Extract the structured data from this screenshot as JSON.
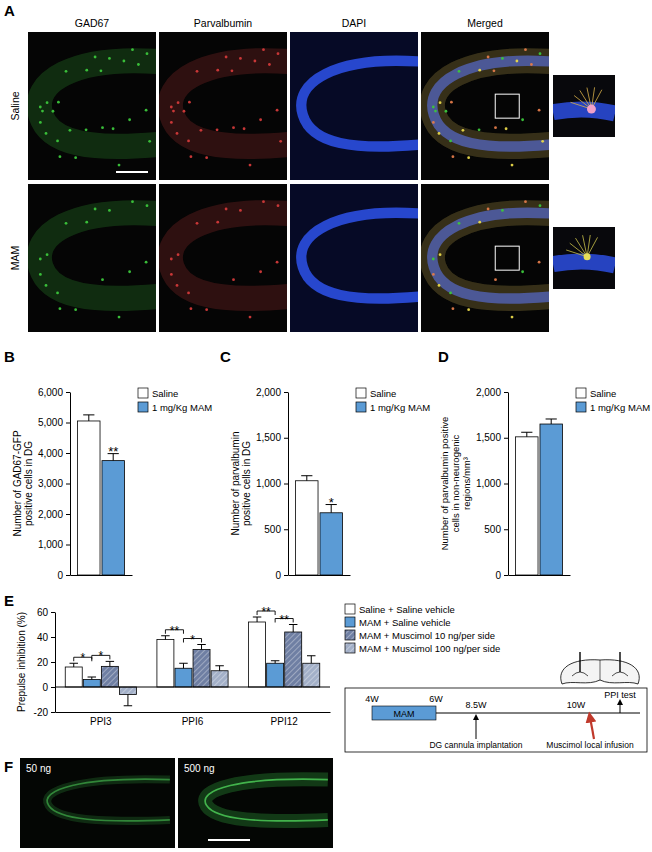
{
  "figure": {
    "panel_labels": [
      "A",
      "B",
      "C",
      "D",
      "E",
      "F"
    ],
    "panel_a": {
      "columns": [
        "GAD67",
        "Parvalbumin",
        "DAPI",
        "Merged"
      ],
      "rows": [
        "Saline",
        "MAM"
      ]
    },
    "timeline": {
      "start": "4W",
      "treatment": "MAM",
      "treatment_end": "6W",
      "surgery_time": "8.5W",
      "surgery": "DG cannula implantation",
      "infusion_time": "10W",
      "infusion": "Muscimol local infusion",
      "test": "PPI test"
    },
    "panel_f": {
      "images": [
        "50 ng",
        "500 ng"
      ]
    }
  },
  "chart_data": [
    {
      "type": "bar",
      "y_label": "Number of GAD67-GFP positive cells in DG",
      "categories": [
        null
      ],
      "series": [
        {
          "name": "Saline",
          "color": "#ffffff",
          "values": [
            5050
          ],
          "errors": [
            200
          ]
        },
        {
          "name": "1 mg/Kg MAM",
          "color": "#5b9bd5",
          "values": [
            3750
          ],
          "errors": [
            230
          ]
        }
      ],
      "ylim": [
        0,
        6000
      ],
      "yticks": [
        0,
        {
          "value": 1000,
          "label": "1,000"
        },
        {
          "value": 2000,
          "label": "2,000"
        },
        {
          "value": 3000,
          "label": "3,000"
        },
        {
          "value": 4000,
          "label": "4,000"
        },
        {
          "value": 5000,
          "label": "5,000"
        },
        {
          "value": 6000,
          "label": "6,000"
        }
      ],
      "tick_labels": "y",
      "legend": "right",
      "annotations": [
        {
          "series": 1,
          "category": 0,
          "text": "**"
        }
      ]
    },
    {
      "type": "bar",
      "y_label": "Number of parvalbumin positive cells in DG",
      "categories": [
        null
      ],
      "series": [
        {
          "name": "Saline",
          "color": "#ffffff",
          "values": [
            1030
          ],
          "errors": [
            55
          ]
        },
        {
          "name": "1 mg/Kg MAM",
          "color": "#5b9bd5",
          "values": [
            680
          ],
          "errors": [
            90
          ]
        }
      ],
      "ylim": [
        0,
        2000
      ],
      "yticks": [
        0,
        500,
        {
          "value": 1000,
          "label": "1,000"
        },
        {
          "value": 1500,
          "label": "1,500"
        },
        {
          "value": 2000,
          "label": "2,000"
        }
      ],
      "tick_labels": "y",
      "legend": "right",
      "annotations": [
        {
          "series": 1,
          "category": 0,
          "text": "*"
        }
      ]
    },
    {
      "type": "bar",
      "y_label": "Number of parvalbumin positive cells in non-neurogenic regions/mm³",
      "categories": [
        null
      ],
      "series": [
        {
          "name": "Saline",
          "color": "#ffffff",
          "values": [
            1510
          ],
          "errors": [
            50
          ]
        },
        {
          "name": "1 mg/Kg MAM",
          "color": "#5b9bd5",
          "values": [
            1650
          ],
          "errors": [
            55
          ]
        }
      ],
      "ylim": [
        0,
        2000
      ],
      "yticks": [
        0,
        500,
        {
          "value": 1000,
          "label": "1,000"
        },
        {
          "value": 1500,
          "label": "1,500"
        },
        {
          "value": 2000,
          "label": "2,000"
        }
      ],
      "tick_labels": "y",
      "legend": "right"
    },
    {
      "type": "bar",
      "y_label": "Prepulse inhibition (%)",
      "categories": [
        "PPI3",
        "PPI6",
        "PPI12"
      ],
      "series": [
        {
          "name": "Saline + Saline vehicle",
          "color": "#ffffff",
          "values": [
            16,
            38,
            52
          ],
          "errors": [
            3,
            3,
            4
          ]
        },
        {
          "name": "MAM + Saline vehicle",
          "color": "#5b9bd5",
          "values": [
            6,
            15,
            19
          ],
          "errors": [
            2,
            4,
            2
          ]
        },
        {
          "name": "MAM + Muscimol 10 ng/per side",
          "color": "#6f7fa3",
          "line_style": "hatched",
          "values": [
            16.5,
            30,
            44
          ],
          "errors": [
            4,
            4,
            6
          ]
        },
        {
          "name": "MAM + Muscimol 100 ng/per side",
          "color": "#a3b0c8",
          "line_style": "hatched",
          "values": [
            -6,
            13,
            19
          ],
          "errors": [
            9,
            4,
            6
          ]
        }
      ],
      "ylim": [
        -20,
        60
      ],
      "yticks": [
        -20,
        0,
        20,
        40,
        60
      ],
      "legend": "right",
      "annotations": [
        {
          "category": 0,
          "from": 0,
          "to": 1,
          "text": "*"
        },
        {
          "category": 0,
          "from": 1,
          "to": 2,
          "text": "*"
        },
        {
          "category": 1,
          "from": 0,
          "to": 1,
          "text": "**"
        },
        {
          "category": 1,
          "from": 1,
          "to": 2,
          "text": "*"
        },
        {
          "category": 2,
          "from": 0,
          "to": 1,
          "text": "**"
        },
        {
          "category": 2,
          "from": 1,
          "to": 2,
          "text": "**"
        }
      ]
    }
  ]
}
